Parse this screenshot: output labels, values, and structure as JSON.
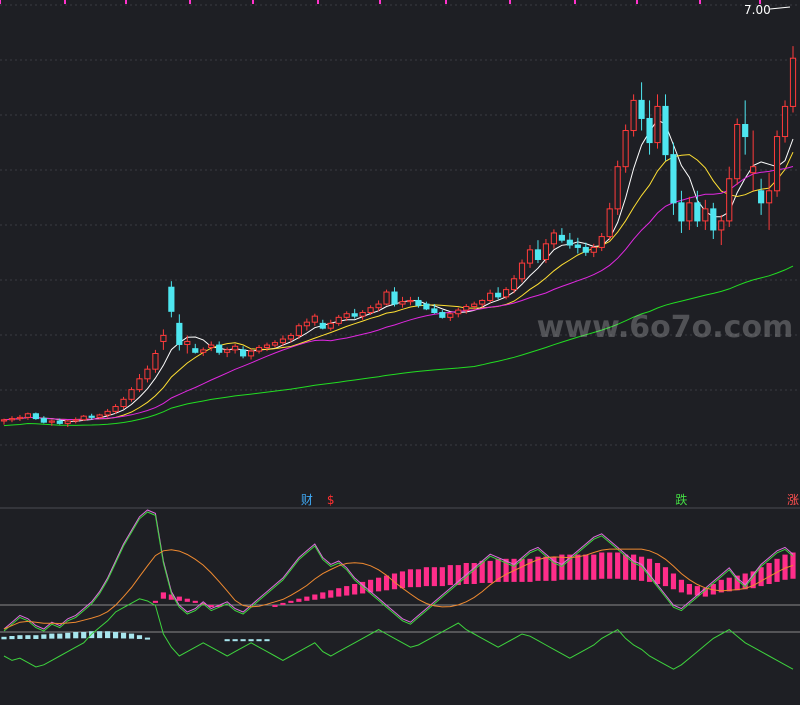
{
  "chart_data": {
    "type": "candlestick",
    "price_label": "7.00",
    "watermark": "www.6o7o.com",
    "markers": [
      {
        "text": "财",
        "color": "#3fa9f5",
        "index": 38
      },
      {
        "text": "$",
        "color": "#ff3030",
        "index": 41
      },
      {
        "text": "跌",
        "color": "#44dd44",
        "index": 85
      },
      {
        "text": "涨",
        "color": "#ff5050",
        "index": 99
      }
    ],
    "price_min": 0.0,
    "price_max": 7.6,
    "candles": [
      [
        0.78,
        0.82,
        0.72,
        0.8
      ],
      [
        0.8,
        0.86,
        0.76,
        0.82
      ],
      [
        0.82,
        0.88,
        0.78,
        0.84
      ],
      [
        0.84,
        0.92,
        0.8,
        0.9
      ],
      [
        0.9,
        0.92,
        0.8,
        0.82
      ],
      [
        0.82,
        0.86,
        0.74,
        0.76
      ],
      [
        0.76,
        0.8,
        0.7,
        0.78
      ],
      [
        0.78,
        0.82,
        0.72,
        0.74
      ],
      [
        0.74,
        0.8,
        0.68,
        0.78
      ],
      [
        0.78,
        0.84,
        0.74,
        0.8
      ],
      [
        0.8,
        0.88,
        0.78,
        0.86
      ],
      [
        0.86,
        0.9,
        0.8,
        0.84
      ],
      [
        0.84,
        0.9,
        0.82,
        0.88
      ],
      [
        0.88,
        0.98,
        0.84,
        0.94
      ],
      [
        0.94,
        1.06,
        0.9,
        1.02
      ],
      [
        1.02,
        1.18,
        0.98,
        1.14
      ],
      [
        1.14,
        1.34,
        1.1,
        1.3
      ],
      [
        1.3,
        1.56,
        1.26,
        1.48
      ],
      [
        1.48,
        1.7,
        1.42,
        1.64
      ],
      [
        1.64,
        1.96,
        1.58,
        1.9
      ],
      [
        2.1,
        2.3,
        1.96,
        2.2
      ],
      [
        3.0,
        3.1,
        2.5,
        2.6
      ],
      [
        2.4,
        2.55,
        1.95,
        2.05
      ],
      [
        2.05,
        2.2,
        1.9,
        2.1
      ],
      [
        1.98,
        2.06,
        1.9,
        1.92
      ],
      [
        1.92,
        2.0,
        1.86,
        1.96
      ],
      [
        2.0,
        2.1,
        1.94,
        2.04
      ],
      [
        2.04,
        2.1,
        1.88,
        1.92
      ],
      [
        1.92,
        2.0,
        1.84,
        1.96
      ],
      [
        1.96,
        2.06,
        1.9,
        2.02
      ],
      [
        1.96,
        2.02,
        1.82,
        1.86
      ],
      [
        1.86,
        1.98,
        1.8,
        1.94
      ],
      [
        1.94,
        2.04,
        1.9,
        2.0
      ],
      [
        2.0,
        2.08,
        1.94,
        2.04
      ],
      [
        2.04,
        2.12,
        2.0,
        2.08
      ],
      [
        2.08,
        2.2,
        2.02,
        2.14
      ],
      [
        2.14,
        2.24,
        2.08,
        2.2
      ],
      [
        2.2,
        2.4,
        2.14,
        2.36
      ],
      [
        2.36,
        2.48,
        2.28,
        2.42
      ],
      [
        2.42,
        2.56,
        2.36,
        2.52
      ],
      [
        2.4,
        2.46,
        2.3,
        2.32
      ],
      [
        2.32,
        2.46,
        2.28,
        2.4
      ],
      [
        2.4,
        2.54,
        2.36,
        2.5
      ],
      [
        2.5,
        2.6,
        2.44,
        2.56
      ],
      [
        2.56,
        2.64,
        2.48,
        2.52
      ],
      [
        2.52,
        2.62,
        2.46,
        2.58
      ],
      [
        2.58,
        2.7,
        2.54,
        2.66
      ],
      [
        2.66,
        2.78,
        2.6,
        2.72
      ],
      [
        2.72,
        2.96,
        2.7,
        2.92
      ],
      [
        2.92,
        3.0,
        2.68,
        2.72
      ],
      [
        2.72,
        2.84,
        2.66,
        2.76
      ],
      [
        2.76,
        2.84,
        2.7,
        2.78
      ],
      [
        2.78,
        2.84,
        2.66,
        2.7
      ],
      [
        2.72,
        2.76,
        2.62,
        2.64
      ],
      [
        2.64,
        2.72,
        2.56,
        2.58
      ],
      [
        2.58,
        2.62,
        2.48,
        2.5
      ],
      [
        2.5,
        2.58,
        2.44,
        2.56
      ],
      [
        2.56,
        2.66,
        2.5,
        2.62
      ],
      [
        2.62,
        2.72,
        2.56,
        2.68
      ],
      [
        2.68,
        2.76,
        2.62,
        2.72
      ],
      [
        2.72,
        2.8,
        2.66,
        2.78
      ],
      [
        2.78,
        2.96,
        2.74,
        2.9
      ],
      [
        2.9,
        3.0,
        2.8,
        2.84
      ],
      [
        2.84,
        3.0,
        2.8,
        2.96
      ],
      [
        2.96,
        3.2,
        2.9,
        3.14
      ],
      [
        3.14,
        3.46,
        3.08,
        3.4
      ],
      [
        3.4,
        3.7,
        3.32,
        3.62
      ],
      [
        3.62,
        3.78,
        3.4,
        3.46
      ],
      [
        3.46,
        3.8,
        3.4,
        3.72
      ],
      [
        3.72,
        3.96,
        3.64,
        3.9
      ],
      [
        3.86,
        3.98,
        3.74,
        3.78
      ],
      [
        3.78,
        3.9,
        3.64,
        3.7
      ],
      [
        3.7,
        3.82,
        3.56,
        3.66
      ],
      [
        3.66,
        3.74,
        3.52,
        3.58
      ],
      [
        3.58,
        3.72,
        3.5,
        3.66
      ],
      [
        3.66,
        3.9,
        3.6,
        3.84
      ],
      [
        3.84,
        4.4,
        3.78,
        4.3
      ],
      [
        4.3,
        5.1,
        4.2,
        5.0
      ],
      [
        5.0,
        5.7,
        4.9,
        5.6
      ],
      [
        5.6,
        6.2,
        5.5,
        6.1
      ],
      [
        6.1,
        6.4,
        5.6,
        5.8
      ],
      [
        5.8,
        6.1,
        5.2,
        5.4
      ],
      [
        5.4,
        6.2,
        5.3,
        6.0
      ],
      [
        6.0,
        6.2,
        5.1,
        5.2
      ],
      [
        5.2,
        5.4,
        4.2,
        4.4
      ],
      [
        4.4,
        4.6,
        3.9,
        4.1
      ],
      [
        4.1,
        4.5,
        3.95,
        4.4
      ],
      [
        4.4,
        4.6,
        4.0,
        4.1
      ],
      [
        4.1,
        4.45,
        3.95,
        4.3
      ],
      [
        4.3,
        4.4,
        3.8,
        3.95
      ],
      [
        3.95,
        4.2,
        3.7,
        4.1
      ],
      [
        4.1,
        5.0,
        4.0,
        4.8
      ],
      [
        4.8,
        5.8,
        4.7,
        5.7
      ],
      [
        5.7,
        6.1,
        5.2,
        5.5
      ],
      [
        4.9,
        5.6,
        4.6,
        5.0
      ],
      [
        4.6,
        4.8,
        4.2,
        4.4
      ],
      [
        4.4,
        4.9,
        3.95,
        4.6
      ],
      [
        4.6,
        5.6,
        4.5,
        5.5
      ],
      [
        5.5,
        6.1,
        5.4,
        6.0
      ],
      [
        6.0,
        7.0,
        5.9,
        6.8
      ]
    ],
    "oscillator": [
      30,
      34,
      38,
      36,
      32,
      30,
      34,
      32,
      36,
      38,
      42,
      46,
      52,
      60,
      70,
      80,
      88,
      96,
      100,
      98,
      70,
      52,
      44,
      40,
      42,
      46,
      42,
      44,
      46,
      42,
      40,
      44,
      48,
      52,
      56,
      60,
      66,
      72,
      76,
      80,
      72,
      68,
      70,
      66,
      60,
      56,
      52,
      48,
      44,
      40,
      36,
      34,
      38,
      42,
      46,
      50,
      54,
      58,
      62,
      66,
      70,
      74,
      72,
      70,
      68,
      72,
      76,
      78,
      74,
      70,
      68,
      72,
      76,
      80,
      84,
      86,
      82,
      78,
      74,
      70,
      68,
      62,
      56,
      50,
      44,
      42,
      46,
      50,
      54,
      58,
      62,
      66,
      60,
      56,
      62,
      68,
      72,
      76,
      78,
      74
    ],
    "lower_line": [
      40,
      36,
      38,
      34,
      30,
      32,
      36,
      40,
      44,
      48,
      52,
      60,
      66,
      72,
      80,
      84,
      88,
      92,
      90,
      86,
      60,
      48,
      40,
      44,
      48,
      52,
      48,
      44,
      40,
      44,
      48,
      52,
      48,
      44,
      40,
      36,
      40,
      44,
      48,
      52,
      44,
      40,
      44,
      48,
      52,
      56,
      60,
      64,
      60,
      56,
      52,
      48,
      50,
      54,
      58,
      62,
      66,
      70,
      64,
      60,
      56,
      52,
      48,
      52,
      56,
      60,
      58,
      54,
      50,
      46,
      42,
      38,
      42,
      46,
      50,
      56,
      60,
      64,
      56,
      50,
      46,
      40,
      36,
      32,
      28,
      32,
      38,
      44,
      50,
      56,
      60,
      64,
      58,
      52,
      48,
      44,
      40,
      36,
      32,
      28
    ],
    "histogram": [
      -4,
      -5,
      -6,
      -6,
      -6,
      -7,
      -8,
      -8,
      -9,
      -10,
      -10,
      -11,
      -11,
      -11,
      -10,
      -9,
      -8,
      -6,
      -3,
      2,
      6,
      5,
      4,
      3,
      2,
      1,
      0,
      0,
      -1,
      -1,
      -1,
      -1,
      -1,
      -1,
      0,
      1,
      2,
      3,
      4,
      5,
      6,
      7,
      8,
      9,
      10,
      11,
      12,
      13,
      14,
      15,
      16,
      17,
      17,
      18,
      18,
      18,
      19,
      19,
      20,
      20,
      21,
      21,
      22,
      22,
      22,
      22,
      22,
      23,
      23,
      23,
      24,
      24,
      24,
      24,
      24,
      25,
      25,
      25,
      24,
      24,
      23,
      22,
      20,
      18,
      15,
      12,
      10,
      9,
      8,
      10,
      12,
      13,
      14,
      15,
      16,
      18,
      20,
      22,
      24,
      25
    ]
  }
}
